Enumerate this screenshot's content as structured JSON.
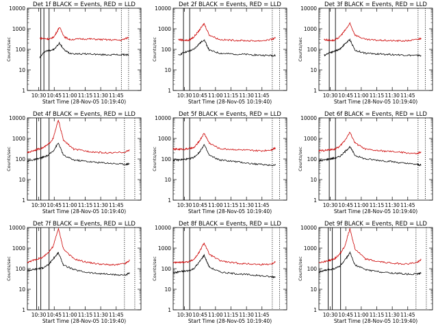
{
  "page": {
    "ylabel": "Counts/sec",
    "xlabel": "Start Time (28-Nov-05 10:19:40)",
    "x_ticks": [
      "10:30",
      "10:45",
      "11:00",
      "11:15",
      "11:30",
      "11:45"
    ],
    "y_ticks": [
      "1",
      "10",
      "100",
      "1000",
      "10000"
    ]
  },
  "colors": {
    "events": "#000000",
    "lld": "#cc0000",
    "axes": "#000000"
  },
  "chart_data": [
    {
      "type": "line",
      "title": "Det 1f BLACK = Events, RED = LLD",
      "xlabel": "Start Time (28-Nov-05 10:19:40)",
      "ylabel": "Counts/sec",
      "y_scale": "log",
      "ylim": [
        1,
        10000
      ],
      "x_ticks": [
        "10:30",
        "10:45",
        "11:00",
        "11:15",
        "11:30",
        "11:45"
      ],
      "series": [
        {
          "name": "Events",
          "color": "#000000",
          "x_min": [
            12,
            17,
            22,
            26,
            31,
            36,
            41,
            51,
            61,
            71,
            81,
            91,
            98
          ],
          "y": [
            40,
            80,
            90,
            100,
            200,
            90,
            65,
            60,
            60,
            55,
            55,
            55,
            55
          ]
        },
        {
          "name": "LLD",
          "color": "#cc0000",
          "x_min": [
            12,
            17,
            22,
            26,
            31,
            36,
            41,
            51,
            61,
            71,
            81,
            91,
            98
          ],
          "y": [
            350,
            330,
            320,
            420,
            1200,
            400,
            300,
            320,
            320,
            300,
            290,
            280,
            380
          ]
        }
      ],
      "vertical_markers_min": [
        13,
        16,
        21
      ],
      "dotted_markers_min": [
        91,
        98
      ]
    },
    {
      "type": "line",
      "title": "Det 2f BLACK = Events, RED = LLD",
      "xlabel": "Start Time (28-Nov-05 10:19:40)",
      "ylabel": "Counts/sec",
      "y_scale": "log",
      "ylim": [
        1,
        10000
      ],
      "x_ticks": [
        "10:30",
        "10:45",
        "11:00",
        "11:15",
        "11:30",
        "11:45"
      ],
      "series": [
        {
          "name": "Events",
          "color": "#000000",
          "x_min": [
            5,
            10,
            15,
            20,
            25,
            30,
            35,
            45,
            55,
            65,
            75,
            85,
            95,
            99
          ],
          "y": [
            50,
            70,
            80,
            100,
            180,
            300,
            90,
            65,
            60,
            58,
            55,
            52,
            50,
            50
          ]
        },
        {
          "name": "LLD",
          "color": "#cc0000",
          "x_min": [
            5,
            10,
            15,
            20,
            25,
            30,
            35,
            45,
            55,
            65,
            75,
            85,
            95,
            99
          ],
          "y": [
            300,
            280,
            270,
            400,
            800,
            1800,
            500,
            300,
            280,
            270,
            260,
            260,
            300,
            350
          ]
        }
      ],
      "vertical_markers_min": [
        10,
        16
      ],
      "dotted_markers_min": [
        96,
        103
      ]
    },
    {
      "type": "line",
      "title": "Det 3f BLACK = Events, RED = LLD",
      "xlabel": "Start Time (28-Nov-05 10:19:40)",
      "ylabel": "Counts/sec",
      "y_scale": "log",
      "ylim": [
        1,
        10000
      ],
      "x_ticks": [
        "10:30",
        "10:45",
        "11:00",
        "11:15",
        "11:30",
        "11:45"
      ],
      "series": [
        {
          "name": "Events",
          "color": "#000000",
          "x_min": [
            5,
            10,
            15,
            20,
            25,
            30,
            35,
            45,
            55,
            65,
            75,
            85,
            95,
            99
          ],
          "y": [
            50,
            70,
            80,
            100,
            180,
            300,
            90,
            65,
            60,
            58,
            55,
            52,
            50,
            50
          ]
        },
        {
          "name": "LLD",
          "color": "#cc0000",
          "x_min": [
            5,
            10,
            15,
            20,
            25,
            30,
            35,
            45,
            55,
            65,
            75,
            85,
            95,
            99
          ],
          "y": [
            300,
            280,
            270,
            400,
            800,
            1800,
            500,
            300,
            280,
            270,
            260,
            260,
            300,
            350
          ]
        }
      ],
      "vertical_markers_min": [
        10,
        16
      ],
      "dotted_markers_min": [
        96,
        103
      ]
    },
    {
      "type": "line",
      "title": "Det 4f BLACK = Events, RED = LLD",
      "xlabel": "Start Time (28-Nov-05 10:19:40)",
      "ylabel": "Counts/sec",
      "y_scale": "log",
      "ylim": [
        1,
        10000
      ],
      "x_ticks": [
        "10:30",
        "10:45",
        "11:00",
        "11:15",
        "11:30",
        "11:45"
      ],
      "series": [
        {
          "name": "Events",
          "color": "#000000",
          "x_min": [
            0,
            5,
            10,
            15,
            20,
            25,
            30,
            35,
            45,
            55,
            65,
            75,
            85,
            95,
            99
          ],
          "y": [
            80,
            90,
            100,
            120,
            150,
            250,
            600,
            150,
            90,
            80,
            70,
            65,
            60,
            55,
            60
          ]
        },
        {
          "name": "LLD",
          "color": "#cc0000",
          "x_min": [
            0,
            5,
            10,
            15,
            20,
            25,
            30,
            35,
            45,
            55,
            65,
            75,
            85,
            95,
            99
          ],
          "y": [
            200,
            250,
            300,
            350,
            500,
            1000,
            8000,
            800,
            300,
            250,
            220,
            200,
            200,
            220,
            280
          ]
        }
      ],
      "vertical_markers_min": [
        9,
        13,
        21
      ],
      "dotted_markers_min": [
        94,
        104
      ]
    },
    {
      "type": "line",
      "title": "Det 5f BLACK = Events, RED = LLD",
      "xlabel": "Start Time (28-Nov-05 10:19:40)",
      "ylabel": "Counts/sec",
      "y_scale": "log",
      "ylim": [
        1,
        10000
      ],
      "x_ticks": [
        "10:30",
        "10:45",
        "11:00",
        "11:15",
        "11:30",
        "11:45"
      ],
      "series": [
        {
          "name": "Events",
          "color": "#000000",
          "x_min": [
            0,
            5,
            10,
            15,
            20,
            25,
            30,
            35,
            45,
            55,
            65,
            75,
            85,
            95,
            99
          ],
          "y": [
            90,
            90,
            95,
            100,
            120,
            200,
            500,
            150,
            90,
            80,
            70,
            60,
            55,
            50,
            50
          ]
        },
        {
          "name": "LLD",
          "color": "#cc0000",
          "x_min": [
            0,
            5,
            10,
            15,
            20,
            25,
            30,
            35,
            45,
            55,
            65,
            75,
            85,
            95,
            99
          ],
          "y": [
            300,
            300,
            300,
            320,
            350,
            700,
            1800,
            600,
            320,
            300,
            280,
            260,
            250,
            280,
            350
          ]
        }
      ],
      "vertical_markers_min": [
        10,
        16
      ],
      "dotted_markers_min": [
        96,
        103
      ]
    },
    {
      "type": "line",
      "title": "Det 6f BLACK = Events, RED = LLD",
      "xlabel": "Start Time (28-Nov-05 10:19:40)",
      "ylabel": "Counts/sec",
      "y_scale": "log",
      "ylim": [
        1,
        10000
      ],
      "x_ticks": [
        "10:30",
        "10:45",
        "11:00",
        "11:15",
        "11:30",
        "11:45"
      ],
      "series": [
        {
          "name": "Events",
          "color": "#000000",
          "x_min": [
            0,
            5,
            10,
            15,
            20,
            25,
            30,
            35,
            45,
            55,
            65,
            75,
            85,
            95,
            99
          ],
          "y": [
            80,
            90,
            100,
            110,
            130,
            220,
            400,
            150,
            100,
            90,
            80,
            70,
            60,
            55,
            50
          ]
        },
        {
          "name": "LLD",
          "color": "#cc0000",
          "x_min": [
            0,
            5,
            10,
            15,
            20,
            25,
            30,
            35,
            45,
            55,
            65,
            75,
            85,
            95,
            99
          ],
          "y": [
            250,
            260,
            280,
            300,
            400,
            800,
            2000,
            600,
            300,
            260,
            240,
            220,
            200,
            180,
            220
          ]
        }
      ],
      "vertical_markers_min": [
        10,
        16
      ],
      "dotted_markers_min": [
        96,
        103
      ]
    },
    {
      "type": "line",
      "title": "Det 7f BLACK = Events, RED = LLD",
      "xlabel": "Start Time (28-Nov-05 10:19:40)",
      "ylabel": "Counts/sec",
      "y_scale": "log",
      "ylim": [
        1,
        10000
      ],
      "x_ticks": [
        "10:30",
        "10:45",
        "11:00",
        "11:15",
        "11:30",
        "11:45"
      ],
      "series": [
        {
          "name": "Events",
          "color": "#000000",
          "x_min": [
            0,
            5,
            10,
            15,
            20,
            25,
            30,
            35,
            45,
            55,
            65,
            75,
            85,
            95,
            99
          ],
          "y": [
            80,
            90,
            100,
            110,
            150,
            300,
            600,
            150,
            90,
            70,
            60,
            55,
            50,
            50,
            60
          ]
        },
        {
          "name": "LLD",
          "color": "#cc0000",
          "x_min": [
            0,
            5,
            10,
            15,
            20,
            25,
            30,
            35,
            45,
            55,
            65,
            75,
            85,
            95,
            99
          ],
          "y": [
            200,
            250,
            300,
            350,
            600,
            1200,
            9000,
            900,
            300,
            220,
            180,
            160,
            150,
            180,
            250
          ]
        }
      ],
      "vertical_markers_min": [
        9,
        13,
        21
      ],
      "dotted_markers_min": [
        94,
        104
      ]
    },
    {
      "type": "line",
      "title": "Det 8f BLACK = Events, RED = LLD",
      "xlabel": "Start Time (28-Nov-05 10:19:40)",
      "ylabel": "Counts/sec",
      "y_scale": "log",
      "ylim": [
        1,
        10000
      ],
      "x_ticks": [
        "10:30",
        "10:45",
        "11:00",
        "11:15",
        "11:30",
        "11:45"
      ],
      "series": [
        {
          "name": "Events",
          "color": "#000000",
          "x_min": [
            0,
            5,
            10,
            15,
            20,
            25,
            30,
            35,
            45,
            55,
            65,
            75,
            85,
            95,
            99
          ],
          "y": [
            60,
            70,
            75,
            80,
            100,
            200,
            450,
            120,
            70,
            60,
            55,
            50,
            45,
            40,
            40
          ]
        },
        {
          "name": "LLD",
          "color": "#cc0000",
          "x_min": [
            0,
            5,
            10,
            15,
            20,
            25,
            30,
            35,
            45,
            55,
            65,
            75,
            85,
            95,
            99
          ],
          "y": [
            200,
            200,
            210,
            220,
            280,
            600,
            1800,
            500,
            250,
            200,
            180,
            170,
            160,
            170,
            220
          ]
        }
      ],
      "vertical_markers_min": [
        10,
        16
      ],
      "dotted_markers_min": [
        96,
        103
      ]
    },
    {
      "type": "line",
      "title": "Det 9f BLACK = Events, RED = LLD",
      "xlabel": "Start Time (28-Nov-05 10:19:40)",
      "ylabel": "Counts/sec",
      "y_scale": "log",
      "ylim": [
        1,
        10000
      ],
      "x_ticks": [
        "10:30",
        "10:45",
        "11:00",
        "11:15",
        "11:30",
        "11:45"
      ],
      "series": [
        {
          "name": "Events",
          "color": "#000000",
          "x_min": [
            0,
            5,
            10,
            15,
            20,
            25,
            30,
            35,
            45,
            55,
            65,
            75,
            85,
            95,
            99
          ],
          "y": [
            70,
            80,
            90,
            100,
            130,
            250,
            600,
            150,
            90,
            75,
            65,
            60,
            55,
            55,
            60
          ]
        },
        {
          "name": "LLD",
          "color": "#cc0000",
          "x_min": [
            0,
            5,
            10,
            15,
            20,
            25,
            30,
            35,
            45,
            55,
            65,
            75,
            85,
            95,
            99
          ],
          "y": [
            200,
            220,
            250,
            300,
            500,
            1200,
            9000,
            900,
            300,
            230,
            200,
            180,
            170,
            200,
            280
          ]
        }
      ],
      "vertical_markers_min": [
        9,
        13,
        21
      ],
      "dotted_markers_min": [
        94,
        104
      ]
    }
  ]
}
